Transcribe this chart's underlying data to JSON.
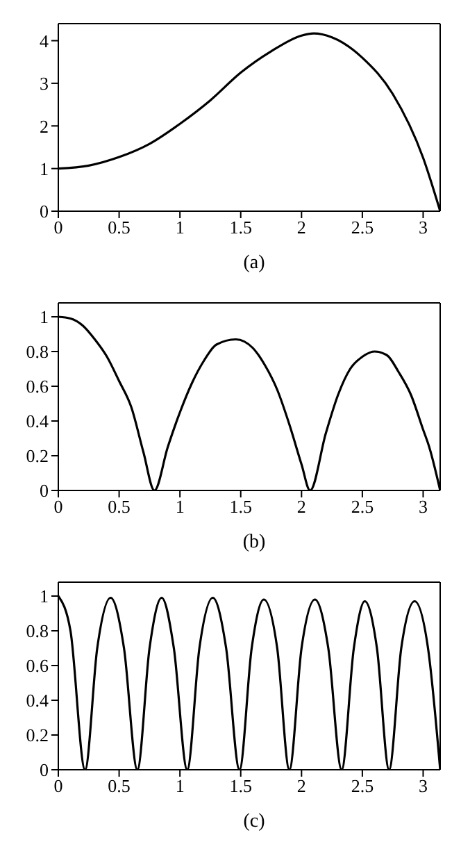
{
  "chart_data": [
    {
      "type": "line",
      "title": "(a)",
      "xlim": [
        0,
        3.14
      ],
      "ylim": [
        0,
        4.4
      ],
      "xticks": [
        0,
        0.5,
        1,
        1.5,
        2,
        2.5,
        3
      ],
      "yticks": [
        0,
        1,
        2,
        3,
        4
      ],
      "grid": false,
      "legend": false,
      "marker": "none",
      "line_style": "solid",
      "series": [
        {
          "color": "#000000",
          "x": [
            0,
            0.25,
            0.5,
            0.75,
            1,
            1.25,
            1.5,
            1.75,
            2,
            2.1,
            2.25,
            2.5,
            2.75,
            3,
            3.14
          ],
          "values": [
            1,
            1.07,
            1.27,
            1.58,
            2.05,
            2.6,
            3.25,
            3.75,
            4.12,
            4.17,
            4.08,
            3.6,
            2.75,
            1.25,
            0
          ]
        }
      ]
    },
    {
      "type": "line",
      "title": "(b)",
      "xlim": [
        0,
        3.14
      ],
      "ylim": [
        0,
        1.08
      ],
      "xticks": [
        0,
        0.5,
        1,
        1.5,
        2,
        2.5,
        3
      ],
      "yticks": [
        0,
        0.2,
        0.4,
        0.6,
        0.8,
        1
      ],
      "grid": false,
      "legend": false,
      "marker": "none",
      "line_style": "solid",
      "series": [
        {
          "color": "#000000",
          "x": [
            0,
            0.1,
            0.2,
            0.3,
            0.4,
            0.5,
            0.6,
            0.7,
            0.79,
            0.9,
            1,
            1.1,
            1.2,
            1.3,
            1.46,
            1.6,
            1.7,
            1.8,
            1.9,
            2,
            2.07,
            2.2,
            2.3,
            2.4,
            2.5,
            2.6,
            2.7,
            2.8,
            2.9,
            3,
            3.05,
            3.14
          ],
          "values": [
            1,
            0.99,
            0.95,
            0.87,
            0.77,
            0.63,
            0.48,
            0.22,
            0,
            0.25,
            0.45,
            0.62,
            0.75,
            0.84,
            0.87,
            0.82,
            0.72,
            0.58,
            0.38,
            0.15,
            0,
            0.33,
            0.55,
            0.7,
            0.77,
            0.8,
            0.78,
            0.68,
            0.55,
            0.35,
            0.25,
            0
          ]
        }
      ]
    },
    {
      "type": "line",
      "title": "(c)",
      "xlim": [
        0,
        3.14
      ],
      "ylim": [
        0,
        1.08
      ],
      "xticks": [
        0,
        0.5,
        1,
        1.5,
        2,
        2.5,
        3
      ],
      "yticks": [
        0,
        0.2,
        0.4,
        0.6,
        0.8,
        1
      ],
      "grid": false,
      "legend": false,
      "marker": "none",
      "line_style": "solid",
      "series": [
        {
          "color": "#000000",
          "x": [
            0,
            0.1,
            0.22,
            0.32,
            0.43,
            0.54,
            0.65,
            0.75,
            0.85,
            0.95,
            1.06,
            1.16,
            1.27,
            1.38,
            1.49,
            1.59,
            1.69,
            1.8,
            1.9,
            2,
            2.11,
            2.22,
            2.33,
            2.43,
            2.52,
            2.62,
            2.72,
            2.82,
            2.93,
            3.04,
            3.14
          ],
          "values": [
            1,
            0.8,
            0,
            0.7,
            0.99,
            0.7,
            0,
            0.7,
            0.99,
            0.7,
            0,
            0.7,
            0.99,
            0.7,
            0,
            0.7,
            0.98,
            0.7,
            0,
            0.7,
            0.98,
            0.7,
            0,
            0.7,
            0.97,
            0.7,
            0,
            0.7,
            0.97,
            0.7,
            0
          ]
        }
      ]
    }
  ]
}
